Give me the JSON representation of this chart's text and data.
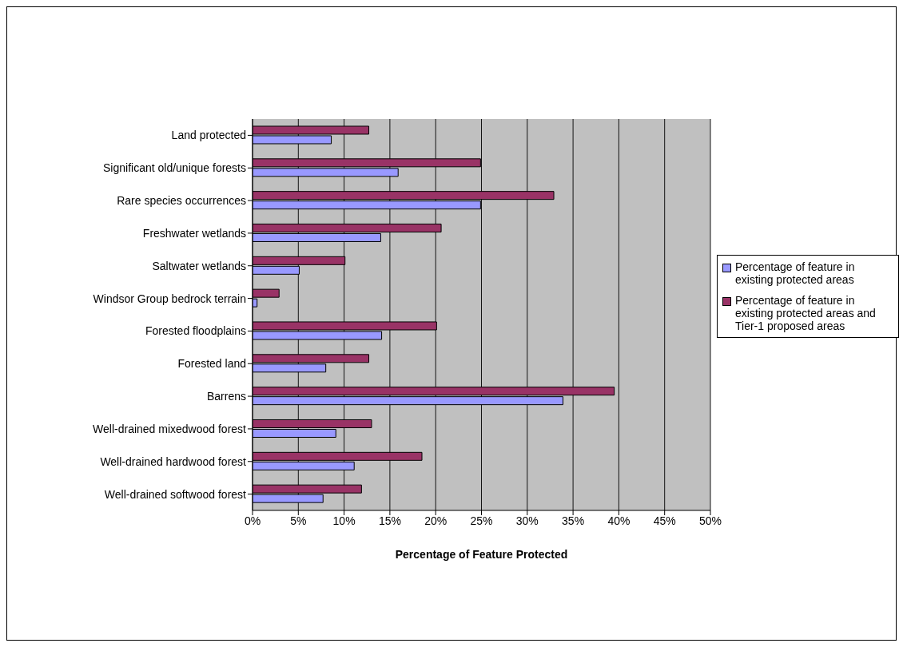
{
  "chart_data": {
    "type": "bar",
    "orientation": "horizontal",
    "xlabel": "Percentage of Feature Protected",
    "categories": [
      "Land protected",
      "Significant old/unique forests",
      "Rare species occurrences",
      "Freshwater wetlands",
      "Saltwater wetlands",
      "Windsor Group bedrock terrain",
      "Forested floodplains",
      "Forested land",
      "Barrens",
      "Well-drained mixedwood forest",
      "Well-drained hardwood forest",
      "Well-drained softwood forest"
    ],
    "series": [
      {
        "name": "Percentage of feature in existing protected areas",
        "color": "#9999ff",
        "values": [
          8.6,
          15.9,
          24.9,
          14.0,
          5.1,
          0.5,
          14.1,
          8.0,
          33.9,
          9.1,
          11.1,
          7.7
        ]
      },
      {
        "name": "Percentage of feature in existing protected areas and Tier-1 proposed areas",
        "color": "#993366",
        "values": [
          12.7,
          24.9,
          32.9,
          20.6,
          10.1,
          2.9,
          20.1,
          12.7,
          39.5,
          13.0,
          18.5,
          11.9
        ]
      }
    ],
    "xlim": [
      0,
      50
    ],
    "xticks": [
      {
        "value": 0,
        "label": "0%"
      },
      {
        "value": 5,
        "label": "5%"
      },
      {
        "value": 10,
        "label": "10%"
      },
      {
        "value": 15,
        "label": "15%"
      },
      {
        "value": 20,
        "label": "20%"
      },
      {
        "value": 25,
        "label": "25%"
      },
      {
        "value": 30,
        "label": "30%"
      },
      {
        "value": 35,
        "label": "35%"
      },
      {
        "value": 40,
        "label": "40%"
      },
      {
        "value": 45,
        "label": "45%"
      },
      {
        "value": 50,
        "label": "50%"
      }
    ],
    "grid": "x",
    "legend": "right"
  }
}
